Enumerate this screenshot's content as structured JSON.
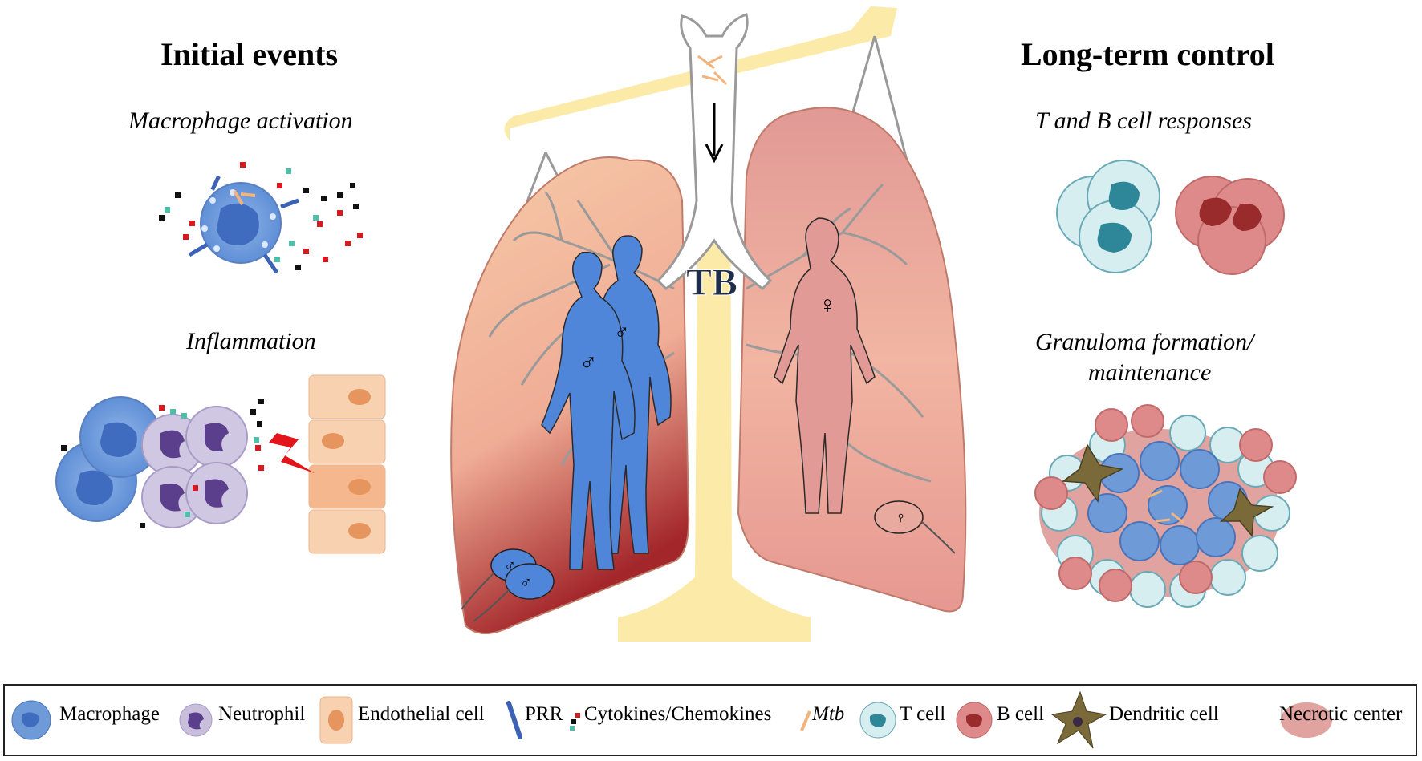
{
  "left": {
    "title": "Initial events",
    "panel1": "Macrophage activation",
    "panel2": "Inflammation"
  },
  "right": {
    "title": "Long-term control",
    "panel1": "T and B cell responses",
    "panel2_line1": "Granuloma formation/",
    "panel2_line2": "maintenance"
  },
  "center": {
    "label": "TB",
    "male_symbol": "♂",
    "female_symbol": "♀"
  },
  "legend": {
    "macrophage": "Macrophage",
    "neutrophil": "Neutrophil",
    "endothelial": "Endothelial cell",
    "prr": "PRR",
    "cytokines": "Cytokines/Chemokines",
    "mtb": "Mtb",
    "tcell": "T cell",
    "bcell": "B cell",
    "dendritic": "Dendritic cell",
    "necrotic": "Necrotic center"
  },
  "colors": {
    "macrophage": "#6f9ad8",
    "neutrophil": "#c9bfdd",
    "endothelial": "#f8d2b0",
    "tcell": "#d7eef1",
    "bcell": "#df8a8a",
    "dendritic": "#7a6a3a",
    "male": "#4f86d9",
    "female": "#e29a96",
    "scale": "#fbe9a6"
  }
}
